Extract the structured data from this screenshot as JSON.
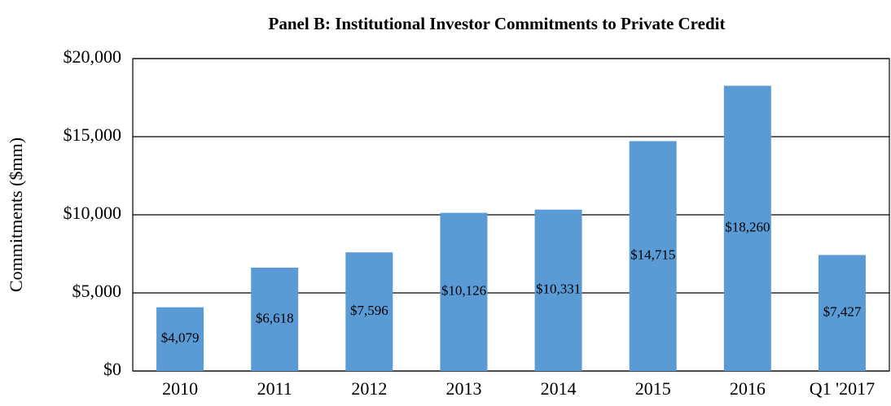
{
  "chart_data": {
    "type": "bar",
    "title": "Panel B: Institutional Investor Commitments to Private Credit",
    "y_label": "Commitments ($mm)",
    "categories": [
      "2010",
      "2011",
      "2012",
      "2013",
      "2014",
      "2015",
      "2016",
      "Q1 '2017"
    ],
    "values": [
      4079,
      6618,
      7596,
      10126,
      10331,
      14715,
      18260,
      7427
    ],
    "value_labels": [
      "$4,079",
      "$6,618",
      "$7,596",
      "$10,126",
      "$10,331",
      "$14,715",
      "$18,260",
      "$7,427"
    ],
    "color": "#5b9bd5",
    "ylim": [
      0,
      20000
    ],
    "yticks": [
      {
        "value": 0,
        "label": "$0"
      },
      {
        "value": 5000,
        "label": "$5,000"
      },
      {
        "value": 10000,
        "label": "$10,000"
      },
      {
        "value": 15000,
        "label": "$15,000"
      },
      {
        "value": 20000,
        "label": "$20,000"
      }
    ],
    "grid": true
  }
}
